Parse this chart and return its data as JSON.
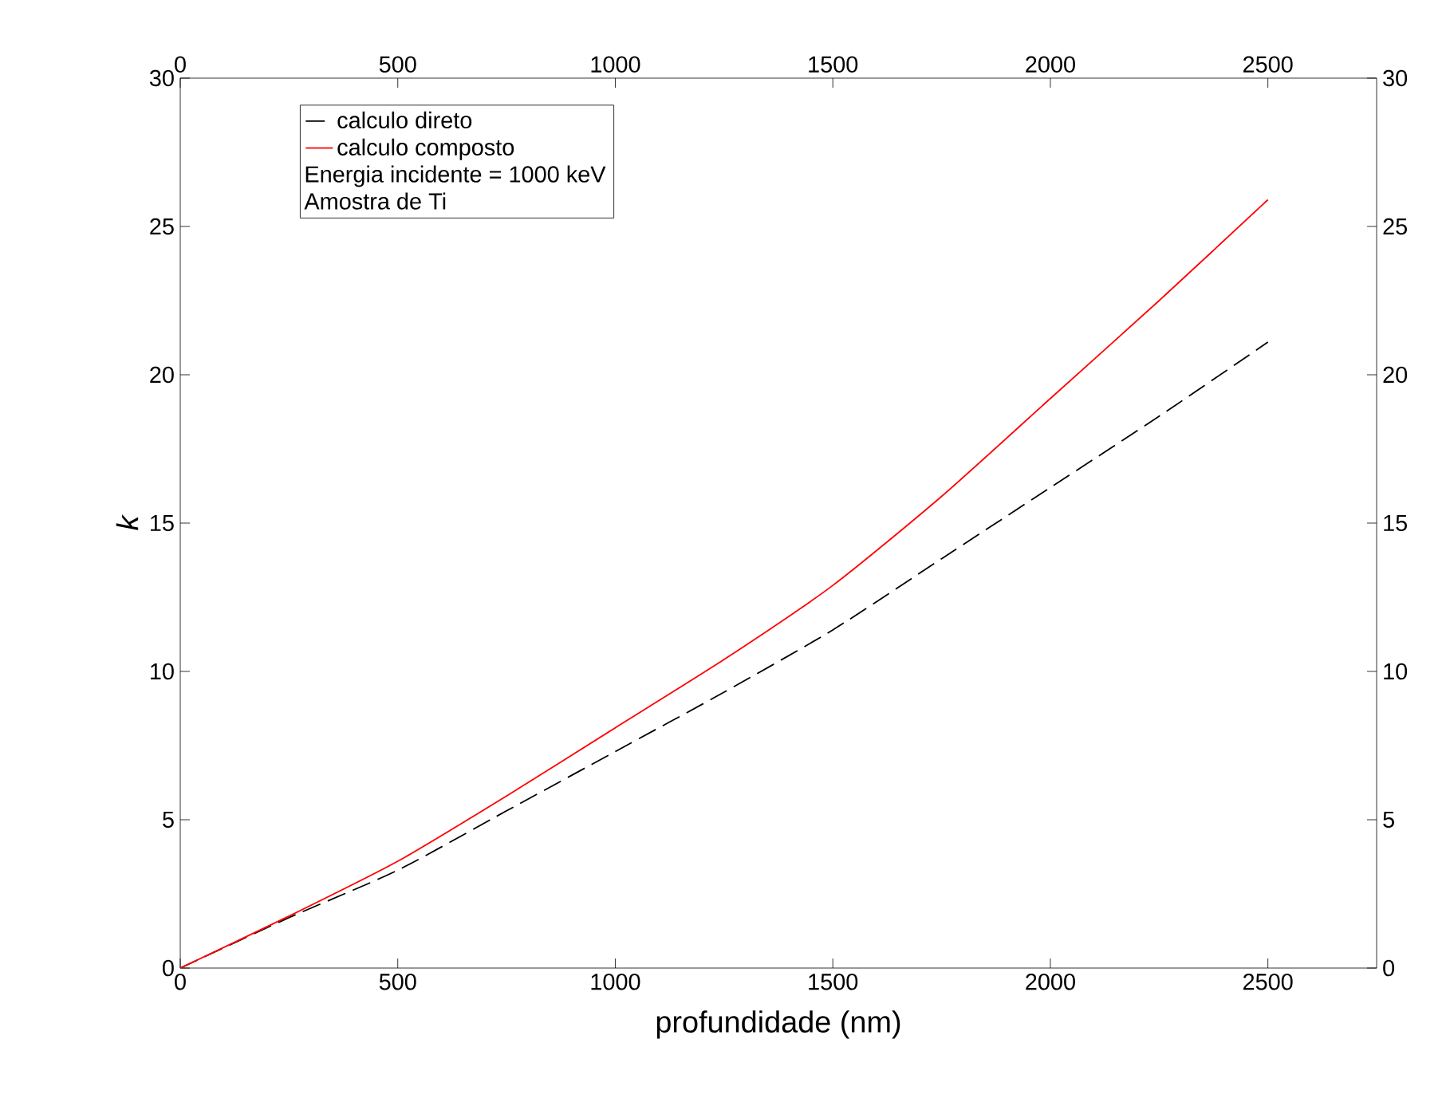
{
  "chart_data": {
    "type": "line",
    "xlabel": "profundidade (nm)",
    "ylabel": "k",
    "x": [
      0,
      250,
      500,
      750,
      1000,
      1250,
      1500,
      1750,
      2000,
      2250,
      2500
    ],
    "series": [
      {
        "name": "calculo direto",
        "color": "#000000",
        "line_style": "dashed",
        "values": [
          0,
          1.7,
          3.3,
          5.3,
          7.3,
          9.3,
          11.4,
          13.8,
          16.2,
          18.6,
          21.1
        ]
      },
      {
        "name": "calculo composto",
        "color": "#ff0000",
        "line_style": "solid",
        "values": [
          0,
          1.75,
          3.6,
          5.8,
          8.1,
          10.4,
          12.9,
          15.9,
          19.2,
          22.5,
          25.9
        ]
      }
    ],
    "annotations": [
      "Energia incidente = 1000 keV",
      "Amostra de Ti"
    ],
    "xlim": [
      0,
      2750
    ],
    "xticks": [
      0,
      500,
      1000,
      1500,
      2000,
      2500
    ],
    "ylim": [
      0,
      30
    ],
    "yticks": [
      0,
      5,
      10,
      15,
      20,
      25,
      30
    ],
    "x2lim": [
      0,
      2750
    ],
    "x2ticks": [
      0,
      500,
      1000,
      1500,
      2000,
      2500
    ],
    "y2lim": [
      0,
      30
    ],
    "y2ticks": [
      0,
      5,
      10,
      15,
      20,
      25,
      30
    ],
    "legend": "top left",
    "grid": false,
    "marker": "none"
  }
}
